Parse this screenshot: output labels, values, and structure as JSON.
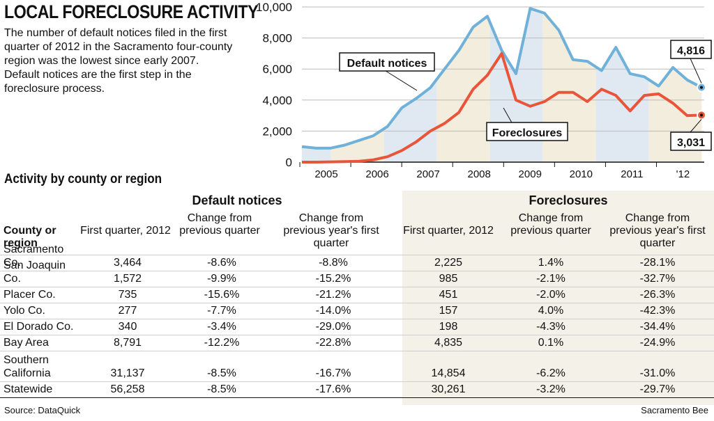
{
  "title": "LOCAL FORECLOSURE ACTIVITY",
  "intro": "The number of default notices filed in the first quarter of 2012 in the Sacramento four-county region was the lowest since early 2007. Default notices are the first step in the foreclosure process.",
  "chart_data": {
    "type": "line",
    "x_labels": [
      "2005",
      "2006",
      "2007",
      "2008",
      "2009",
      "2010",
      "2011",
      "'12"
    ],
    "y_ticks": [
      "0",
      "2,000",
      "4,000",
      "6,000",
      "8,000",
      "10,000"
    ],
    "ylim": [
      0,
      10000
    ],
    "series": [
      {
        "name": "Default notices",
        "color": "#6fb1d8",
        "values": [
          1000,
          900,
          900,
          1100,
          1400,
          1700,
          2300,
          3500,
          4100,
          4800,
          6000,
          7200,
          8700,
          9400,
          7200,
          5700,
          9900,
          9600,
          8500,
          6600,
          6500,
          5900,
          7400,
          5700,
          5500,
          4900,
          6100,
          5300,
          4816
        ]
      },
      {
        "name": "Foreclosures",
        "color": "#e8553a",
        "values": [
          0,
          0,
          20,
          30,
          60,
          150,
          350,
          750,
          1300,
          2000,
          2500,
          3200,
          4700,
          5600,
          7000,
          4000,
          3600,
          3900,
          4500,
          4500,
          3900,
          4700,
          4300,
          3300,
          4300,
          4400,
          3800,
          3000,
          3031
        ]
      }
    ],
    "annotations": {
      "default_end": "4,816",
      "foreclosure_end": "3,031",
      "default_label": "Default notices",
      "foreclosure_label": "Foreclosures"
    }
  },
  "table": {
    "heading": "Activity by county or region",
    "group_default": "Default notices",
    "group_foreclosures": "Foreclosures",
    "col_county": "County or region",
    "col_first": "First quarter, 2012",
    "col_prev_q": "Change from previous quarter",
    "col_prev_y": "Change from previous year's first quarter",
    "rows": [
      {
        "name": "Sacramento Co.",
        "d1": "3,464",
        "d2": "-8.6%",
        "d3": "-8.8%",
        "f1": "2,225",
        "f2": "1.4%",
        "f3": "-28.1%"
      },
      {
        "name": "San Joaquin Co.",
        "d1": "1,572",
        "d2": "-9.9%",
        "d3": "-15.2%",
        "f1": "985",
        "f2": "-2.1%",
        "f3": "-32.7%"
      },
      {
        "name": "Placer Co.",
        "d1": "735",
        "d2": "-15.6%",
        "d3": "-21.2%",
        "f1": "451",
        "f2": "-2.0%",
        "f3": "-26.3%"
      },
      {
        "name": "Yolo Co.",
        "d1": "277",
        "d2": "-7.7%",
        "d3": "-14.0%",
        "f1": "157",
        "f2": "4.0%",
        "f3": "-42.3%"
      },
      {
        "name": "El Dorado Co.",
        "d1": "340",
        "d2": "-3.4%",
        "d3": "-29.0%",
        "f1": "198",
        "f2": "-4.3%",
        "f3": "-34.4%"
      },
      {
        "name": "Bay Area",
        "d1": "8,791",
        "d2": "-12.2%",
        "d3": "-22.8%",
        "f1": "4,835",
        "f2": "0.1%",
        "f3": "-24.9%"
      },
      {
        "name": "Southern California",
        "d1": "31,137",
        "d2": "-8.5%",
        "d3": "-16.7%",
        "f1": "14,854",
        "f2": "-6.2%",
        "f3": "-31.0%"
      },
      {
        "name": "Statewide",
        "d1": "56,258",
        "d2": "-8.5%",
        "d3": "-17.6%",
        "f1": "30,261",
        "f2": "-3.2%",
        "f3": "-29.7%"
      }
    ]
  },
  "source": "Source: DataQuick",
  "credit": "Sacramento Bee"
}
